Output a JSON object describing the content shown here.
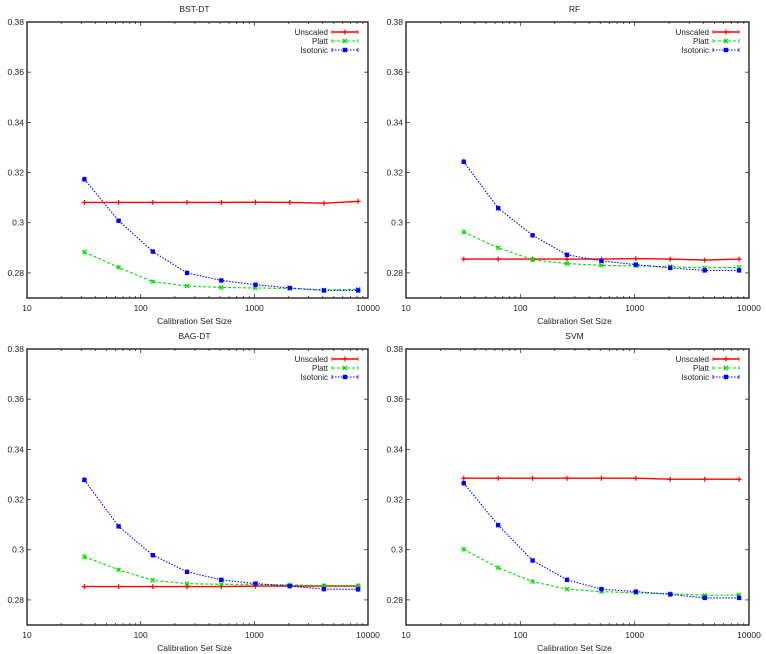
{
  "chart_data": [
    {
      "type": "line",
      "title": "BST-DT",
      "xlabel": "Calibration Set Size",
      "ylabel": "",
      "xscale": "log",
      "xlim": [
        10,
        10000
      ],
      "ylim": [
        0.27,
        0.38
      ],
      "xticks": [
        10,
        100,
        1000,
        10000
      ],
      "xtick_labels": [
        "10",
        "100",
        "1000",
        "10000"
      ],
      "yticks": [
        0.28,
        0.3,
        0.32,
        0.34,
        0.36,
        0.38
      ],
      "ytick_labels": [
        "0.28",
        "0.3",
        "0.32",
        "0.34",
        "0.36",
        "0.38"
      ],
      "grid": false,
      "legend": "top-right",
      "x": [
        32,
        64,
        128,
        256,
        512,
        1024,
        2048,
        4096,
        8192
      ],
      "series": [
        {
          "name": "Unscaled",
          "color": "#ff0000",
          "style": "solid",
          "marker": "plus",
          "values": [
            0.3081,
            0.3081,
            0.3081,
            0.3081,
            0.3081,
            0.3082,
            0.3081,
            0.3078,
            0.3085
          ]
        },
        {
          "name": "Platt",
          "color": "#00dd00",
          "style": "dashed",
          "marker": "x",
          "values": [
            0.2883,
            0.2822,
            0.2765,
            0.2748,
            0.2742,
            0.274,
            0.2738,
            0.2732,
            0.2735
          ]
        },
        {
          "name": "Isotonic",
          "color": "#0000ff",
          "style": "dotted",
          "marker": "square",
          "values": [
            0.3173,
            0.3008,
            0.2885,
            0.28,
            0.277,
            0.2753,
            0.274,
            0.273,
            0.273
          ]
        }
      ]
    },
    {
      "type": "line",
      "title": "RF",
      "xlabel": "Calibration Set Size",
      "ylabel": "",
      "xscale": "log",
      "xlim": [
        10,
        10000
      ],
      "ylim": [
        0.27,
        0.38
      ],
      "xticks": [
        10,
        100,
        1000,
        10000
      ],
      "xtick_labels": [
        "10",
        "100",
        "1000",
        "10000"
      ],
      "yticks": [
        0.28,
        0.3,
        0.32,
        0.34,
        0.36,
        0.38
      ],
      "ytick_labels": [
        "0.28",
        "0.3",
        "0.32",
        "0.34",
        "0.36",
        "0.38"
      ],
      "grid": false,
      "legend": "top-right",
      "x": [
        32,
        64,
        128,
        256,
        512,
        1024,
        2048,
        4096,
        8192
      ],
      "series": [
        {
          "name": "Unscaled",
          "color": "#ff0000",
          "style": "solid",
          "marker": "plus",
          "values": [
            0.2855,
            0.2855,
            0.2855,
            0.2855,
            0.2855,
            0.2857,
            0.2855,
            0.2851,
            0.2855
          ]
        },
        {
          "name": "Platt",
          "color": "#00dd00",
          "style": "dashed",
          "marker": "x",
          "values": [
            0.2963,
            0.29,
            0.2853,
            0.2837,
            0.283,
            0.2828,
            0.2825,
            0.282,
            0.2822
          ]
        },
        {
          "name": "Isotonic",
          "color": "#0000ff",
          "style": "dotted",
          "marker": "square",
          "values": [
            0.3243,
            0.3058,
            0.295,
            0.2872,
            0.2848,
            0.2833,
            0.282,
            0.281,
            0.281
          ]
        }
      ]
    },
    {
      "type": "line",
      "title": "BAG-DT",
      "xlabel": "Calibration Set Size",
      "ylabel": "",
      "xscale": "log",
      "xlim": [
        10,
        10000
      ],
      "ylim": [
        0.27,
        0.38
      ],
      "xticks": [
        10,
        100,
        1000,
        10000
      ],
      "xtick_labels": [
        "10",
        "100",
        "1000",
        "10000"
      ],
      "yticks": [
        0.28,
        0.3,
        0.32,
        0.34,
        0.36,
        0.38
      ],
      "ytick_labels": [
        "0.28",
        "0.3",
        "0.32",
        "0.34",
        "0.36",
        "0.38"
      ],
      "grid": false,
      "legend": "top-right",
      "x": [
        32,
        64,
        128,
        256,
        512,
        1024,
        2048,
        4096,
        8192
      ],
      "series": [
        {
          "name": "Unscaled",
          "color": "#ff0000",
          "style": "solid",
          "marker": "plus",
          "values": [
            0.2853,
            0.2853,
            0.2853,
            0.2853,
            0.2853,
            0.2855,
            0.2855,
            0.2855,
            0.2855
          ]
        },
        {
          "name": "Platt",
          "color": "#00dd00",
          "style": "dashed",
          "marker": "x",
          "values": [
            0.2972,
            0.292,
            0.2878,
            0.2865,
            0.2862,
            0.2862,
            0.286,
            0.2857,
            0.2857
          ]
        },
        {
          "name": "Isotonic",
          "color": "#0000ff",
          "style": "dotted",
          "marker": "square",
          "values": [
            0.3278,
            0.3093,
            0.2978,
            0.2912,
            0.288,
            0.2865,
            0.2855,
            0.2843,
            0.2842
          ]
        }
      ]
    },
    {
      "type": "line",
      "title": "SVM",
      "xlabel": "Calibration Set Size",
      "ylabel": "",
      "xscale": "log",
      "xlim": [
        10,
        10000
      ],
      "ylim": [
        0.27,
        0.38
      ],
      "xticks": [
        10,
        100,
        1000,
        10000
      ],
      "xtick_labels": [
        "10",
        "100",
        "1000",
        "10000"
      ],
      "yticks": [
        0.28,
        0.3,
        0.32,
        0.34,
        0.36,
        0.38
      ],
      "ytick_labels": [
        "0.28",
        "0.3",
        "0.32",
        "0.34",
        "0.36",
        "0.38"
      ],
      "grid": false,
      "legend": "top-right",
      "x": [
        32,
        64,
        128,
        256,
        512,
        1024,
        2048,
        4096,
        8192
      ],
      "series": [
        {
          "name": "Unscaled",
          "color": "#ff0000",
          "style": "solid",
          "marker": "plus",
          "values": [
            0.3285,
            0.3285,
            0.3285,
            0.3285,
            0.3285,
            0.3285,
            0.3281,
            0.3281,
            0.3281
          ]
        },
        {
          "name": "Platt",
          "color": "#00dd00",
          "style": "dashed",
          "marker": "x",
          "values": [
            0.3002,
            0.2928,
            0.2873,
            0.2843,
            0.2833,
            0.2828,
            0.2825,
            0.2818,
            0.282
          ]
        },
        {
          "name": "Isotonic",
          "color": "#0000ff",
          "style": "dotted",
          "marker": "square",
          "values": [
            0.3265,
            0.3098,
            0.2957,
            0.288,
            0.2843,
            0.2833,
            0.2822,
            0.2808,
            0.2808
          ]
        }
      ]
    }
  ]
}
